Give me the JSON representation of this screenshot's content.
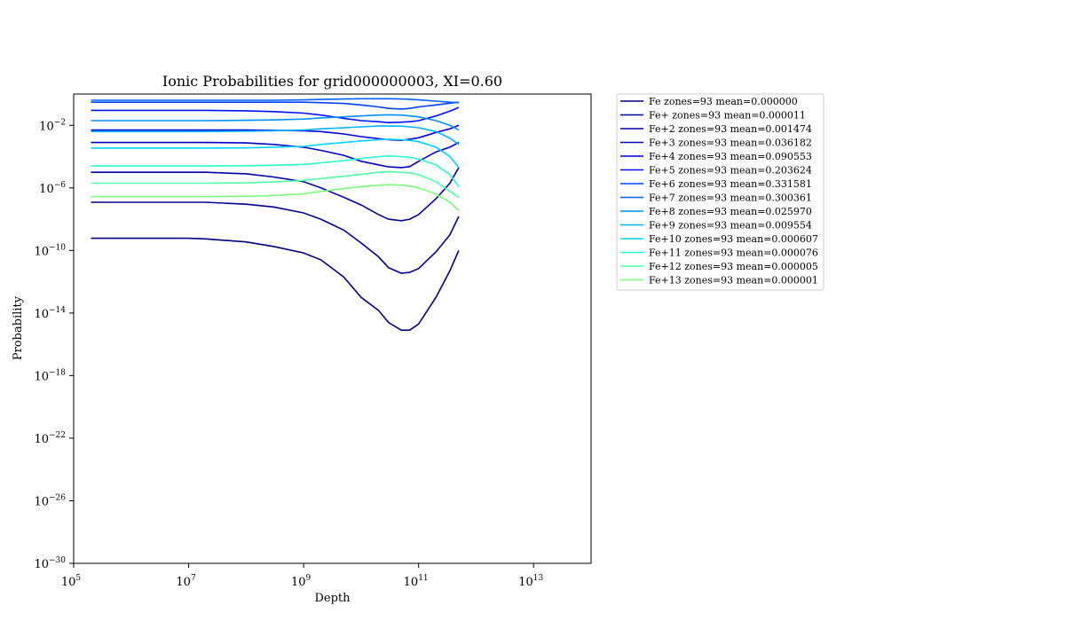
{
  "chart_data": {
    "type": "line",
    "title": "Ionic Probabilities for grid000000003, XI=0.60",
    "xlabel": "Depth",
    "ylabel": "Probability",
    "xscale": "log",
    "yscale": "log",
    "xlim": [
      100000,
      100000000000000.0
    ],
    "ylim": [
      1e-30,
      1
    ],
    "x_ticks": [
      {
        "base": "10",
        "exp": "5"
      },
      {
        "base": "10",
        "exp": "7"
      },
      {
        "base": "10",
        "exp": "9"
      },
      {
        "base": "10",
        "exp": "11"
      },
      {
        "base": "10",
        "exp": "13"
      }
    ],
    "y_ticks": [
      {
        "base": "10",
        "exp": "−2"
      },
      {
        "base": "10",
        "exp": "−6"
      },
      {
        "base": "10",
        "exp": "−10"
      },
      {
        "base": "10",
        "exp": "−14"
      },
      {
        "base": "10",
        "exp": "−18"
      },
      {
        "base": "10",
        "exp": "−22"
      },
      {
        "base": "10",
        "exp": "−26"
      },
      {
        "base": "10",
        "exp": "−30"
      }
    ],
    "grid": false,
    "legend_position": "outside-right-top",
    "x": [
      200000,
      1000000,
      10000000,
      20000000,
      100000000,
      300000000,
      1000000000,
      2000000000,
      5000000000,
      10000000000,
      20000000000,
      30000000000,
      50000000000,
      70000000000,
      100000000000,
      200000000000,
      350000000000,
      500000000000
    ],
    "series": [
      {
        "name": "Fe zones=93 mean=0.000000",
        "color": "#00007f",
        "values": [
          6e-10,
          6e-10,
          6e-10,
          5.5e-10,
          3.5e-10,
          1.8e-10,
          7e-11,
          2.5e-11,
          2e-12,
          1e-13,
          1.5e-14,
          2.5e-15,
          8e-16,
          8e-16,
          2e-15,
          1e-13,
          5e-12,
          1e-10
        ]
      },
      {
        "name": "Fe+ zones=93 mean=0.000011",
        "color": "#00008f",
        "values": [
          1.2e-07,
          1.2e-07,
          1.2e-07,
          1.2e-07,
          9e-08,
          6e-08,
          2.5e-08,
          1e-08,
          2e-09,
          3e-10,
          4e-11,
          8e-12,
          3.5e-12,
          4e-12,
          7e-12,
          8e-11,
          1e-09,
          1.5e-08
        ]
      },
      {
        "name": "Fe+2 zones=93 mean=0.001474",
        "color": "#0000a8",
        "values": [
          1e-05,
          1e-05,
          1e-05,
          1e-05,
          8e-06,
          5e-06,
          2.5e-06,
          1e-06,
          2.5e-07,
          8e-08,
          2e-08,
          1e-08,
          8e-09,
          1e-08,
          2e-08,
          2e-07,
          2e-06,
          2e-05
        ]
      },
      {
        "name": "Fe+3 zones=93 mean=0.036182",
        "color": "#0000c4",
        "values": [
          0.0008,
          0.0008,
          0.0008,
          0.0008,
          0.00075,
          0.0006,
          0.0004,
          0.00025,
          0.00012,
          5e-05,
          3e-05,
          2.2e-05,
          2e-05,
          2.3e-05,
          5e-05,
          0.0002,
          0.0004,
          0.0008
        ]
      },
      {
        "name": "Fe+4 zones=93 mean=0.090553",
        "color": "#0000dd",
        "values": [
          0.005,
          0.005,
          0.005,
          0.005,
          0.005,
          0.0048,
          0.0045,
          0.004,
          0.0028,
          0.0019,
          0.0014,
          0.0012,
          0.0011,
          0.0013,
          0.0016,
          0.0035,
          0.006,
          0.01
        ]
      },
      {
        "name": "Fe+5 zones=93 mean=0.203624",
        "color": "#0010ff",
        "values": [
          0.09,
          0.09,
          0.09,
          0.09,
          0.085,
          0.075,
          0.06,
          0.045,
          0.028,
          0.02,
          0.017,
          0.015,
          0.016,
          0.017,
          0.02,
          0.04,
          0.08,
          0.14
        ]
      },
      {
        "name": "Fe+6 zones=93 mean=0.331581",
        "color": "#0040ff",
        "values": [
          0.3,
          0.3,
          0.3,
          0.3,
          0.3,
          0.3,
          0.3,
          0.28,
          0.25,
          0.2,
          0.15,
          0.12,
          0.11,
          0.12,
          0.15,
          0.2,
          0.26,
          0.3
        ]
      },
      {
        "name": "Fe+7 zones=93 mean=0.300361",
        "color": "#0060ff",
        "values": [
          0.4,
          0.4,
          0.4,
          0.4,
          0.4,
          0.4,
          0.42,
          0.45,
          0.48,
          0.5,
          0.5,
          0.5,
          0.48,
          0.46,
          0.42,
          0.35,
          0.3,
          0.28
        ]
      },
      {
        "name": "Fe+8 zones=93 mean=0.025970",
        "color": "#0090ff",
        "values": [
          0.02,
          0.02,
          0.02,
          0.02,
          0.021,
          0.022,
          0.025,
          0.03,
          0.035,
          0.04,
          0.045,
          0.047,
          0.045,
          0.04,
          0.035,
          0.02,
          0.01,
          0.005
        ]
      },
      {
        "name": "Fe+9 zones=93 mean=0.009554",
        "color": "#00b4ff",
        "values": [
          0.004,
          0.004,
          0.004,
          0.004,
          0.0042,
          0.0045,
          0.005,
          0.006,
          0.007,
          0.008,
          0.009,
          0.009,
          0.0088,
          0.008,
          0.007,
          0.004,
          0.0015,
          0.0006
        ]
      },
      {
        "name": "Fe+10 zones=93 mean=0.000607",
        "color": "#00d4ff",
        "values": [
          0.00035,
          0.00035,
          0.00035,
          0.00035,
          0.00036,
          0.0004,
          0.00045,
          0.0006,
          0.0008,
          0.001,
          0.0012,
          0.0013,
          0.0012,
          0.0011,
          0.0009,
          0.0004,
          0.0001,
          2e-05
        ]
      },
      {
        "name": "Fe+11 zones=93 mean=0.000076",
        "color": "#29ffce",
        "values": [
          2.5e-05,
          2.5e-05,
          2.5e-05,
          2.5e-05,
          2.6e-05,
          2.8e-05,
          3.2e-05,
          4e-05,
          5.5e-05,
          7.5e-05,
          0.0001,
          0.00011,
          0.0001,
          9e-05,
          7e-05,
          3e-05,
          7e-06,
          1.2e-06
        ]
      },
      {
        "name": "Fe+12 zones=93 mean=0.000005",
        "color": "#52ffa5",
        "values": [
          2e-06,
          2e-06,
          2e-06,
          2e-06,
          2.1e-06,
          2.4e-06,
          3e-06,
          4e-06,
          5.5e-06,
          7.5e-06,
          1e-05,
          1.1e-05,
          1e-05,
          9e-06,
          7e-06,
          2.5e-06,
          6e-07,
          2.5e-07
        ]
      },
      {
        "name": "Fe+13 zones=93 mean=0.000001",
        "color": "#7bff7b",
        "values": [
          2.8e-07,
          2.8e-07,
          2.8e-07,
          2.8e-07,
          2.9e-07,
          3.2e-07,
          4.2e-07,
          6e-07,
          9e-07,
          1.2e-06,
          1.5e-06,
          1.6e-06,
          1.5e-06,
          1.3e-06,
          1e-06,
          4e-07,
          1.2e-07,
          3.5e-08
        ]
      }
    ]
  }
}
